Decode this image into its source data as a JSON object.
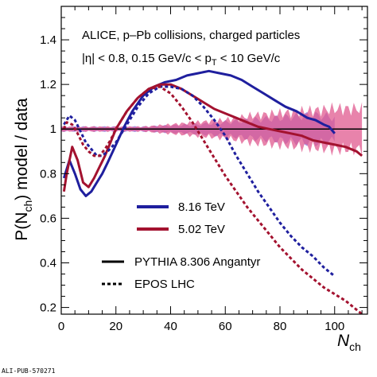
{
  "chart_data": {
    "type": "line",
    "annotation": {
      "line1": "ALICE, p–Pb collisions, charged particles",
      "line2_eta": "|η| < 0.8, 0.15 GeV/c < p",
      "line2_sub": "T",
      "line2_end": " < 10 GeV/c"
    },
    "xlabel": "N",
    "xlabel_sub": "ch",
    "ylabel": "P(N",
    "ylabel_sub": "ch",
    "ylabel_end": ") model / data",
    "xlim": [
      0,
      112
    ],
    "ylim": [
      0.17,
      1.55
    ],
    "x_ticks": [
      0,
      20,
      40,
      60,
      80,
      100
    ],
    "y_ticks": [
      0.2,
      0.4,
      0.6,
      0.8,
      1,
      1.2,
      1.4
    ],
    "y_tick_labels": [
      "0.2",
      "0.4",
      "0.6",
      "0.8",
      "1",
      "1.2",
      "1.4"
    ],
    "reference_line": 1,
    "colors": {
      "blue": "#1f1f9e",
      "red": "#a3122f",
      "band_blue": "#8f6fd9",
      "band_red": "#e05a8f"
    },
    "legend_colors": [
      {
        "label": "8.16 TeV",
        "color": "#1f1f9e"
      },
      {
        "label": "5.02 TeV",
        "color": "#a3122f"
      }
    ],
    "legend_styles": [
      {
        "label": "PYTHIA 8.306 Angantyr",
        "style": "solid"
      },
      {
        "label": "EPOS LHC",
        "style": "dashed"
      }
    ],
    "series": [
      {
        "name": "8.16 TeV PYTHIA 8.306 Angantyr",
        "color": "#1f1f9e",
        "style": "solid",
        "x": [
          1,
          3,
          5,
          7,
          9,
          11,
          13,
          15,
          17,
          20,
          23,
          26,
          30,
          34,
          38,
          42,
          46,
          50,
          54,
          58,
          62,
          66,
          70,
          74,
          78,
          82,
          86,
          90,
          93,
          96,
          98,
          100
        ],
        "y": [
          0.78,
          0.86,
          0.8,
          0.73,
          0.7,
          0.72,
          0.76,
          0.8,
          0.85,
          0.93,
          1.01,
          1.08,
          1.15,
          1.19,
          1.21,
          1.22,
          1.24,
          1.25,
          1.26,
          1.25,
          1.24,
          1.22,
          1.19,
          1.16,
          1.13,
          1.1,
          1.08,
          1.05,
          1.04,
          1.02,
          1.01,
          0.98
        ]
      },
      {
        "name": "5.02 TeV PYTHIA 8.306 Angantyr",
        "color": "#a3122f",
        "style": "solid",
        "x": [
          1,
          2,
          4,
          6,
          8,
          10,
          12,
          14,
          16,
          18,
          20,
          24,
          28,
          32,
          36,
          40,
          44,
          48,
          52,
          56,
          60,
          64,
          68,
          72,
          76,
          80,
          84,
          88,
          92,
          96,
          100,
          104,
          108,
          110
        ],
        "y": [
          0.72,
          0.8,
          0.92,
          0.86,
          0.76,
          0.74,
          0.78,
          0.83,
          0.88,
          0.94,
          1.0,
          1.08,
          1.14,
          1.18,
          1.2,
          1.2,
          1.18,
          1.15,
          1.12,
          1.09,
          1.07,
          1.05,
          1.03,
          1.01,
          1.0,
          0.99,
          0.98,
          0.97,
          0.95,
          0.94,
          0.93,
          0.92,
          0.9,
          0.88
        ]
      },
      {
        "name": "8.16 TeV EPOS LHC",
        "color": "#1f1f9e",
        "style": "dashed",
        "x": [
          1,
          3,
          5,
          7,
          9,
          11,
          13,
          15,
          17,
          20,
          24,
          28,
          32,
          36,
          40,
          44,
          48,
          52,
          56,
          60,
          64,
          68,
          72,
          76,
          80,
          84,
          88,
          92,
          96,
          100
        ],
        "y": [
          1.02,
          1.06,
          1.04,
          0.99,
          0.94,
          0.91,
          0.88,
          0.88,
          0.9,
          0.94,
          1.02,
          1.1,
          1.16,
          1.19,
          1.19,
          1.18,
          1.15,
          1.1,
          1.04,
          0.97,
          0.88,
          0.8,
          0.72,
          0.65,
          0.58,
          0.52,
          0.47,
          0.43,
          0.38,
          0.34
        ]
      },
      {
        "name": "5.02 TeV EPOS LHC",
        "color": "#a3122f",
        "style": "dashed",
        "x": [
          1,
          2,
          4,
          6,
          8,
          10,
          12,
          14,
          16,
          18,
          20,
          24,
          28,
          32,
          36,
          40,
          44,
          48,
          52,
          56,
          60,
          64,
          68,
          72,
          76,
          80,
          84,
          88,
          92,
          96,
          100,
          104,
          108,
          110
        ],
        "y": [
          1.0,
          1.03,
          1.02,
          0.98,
          0.93,
          0.9,
          0.88,
          0.88,
          0.91,
          0.95,
          1.0,
          1.08,
          1.14,
          1.18,
          1.19,
          1.16,
          1.1,
          1.03,
          0.95,
          0.87,
          0.79,
          0.72,
          0.65,
          0.59,
          0.53,
          0.47,
          0.42,
          0.37,
          0.33,
          0.29,
          0.26,
          0.23,
          0.19,
          0.17
        ]
      }
    ],
    "bands": [
      {
        "name": "8.16 TeV uncertainty",
        "color": "#8f6fd9",
        "x": [
          0,
          10,
          20,
          30,
          40,
          50,
          60,
          70,
          80,
          90,
          95,
          100
        ],
        "half_width": [
          0.01,
          0.01,
          0.01,
          0.01,
          0.015,
          0.02,
          0.03,
          0.04,
          0.05,
          0.06,
          0.06,
          0.05
        ]
      },
      {
        "name": "5.02 TeV uncertainty",
        "color": "#e05a8f",
        "x": [
          0,
          10,
          20,
          30,
          40,
          50,
          60,
          70,
          80,
          90,
          100,
          110
        ],
        "half_width": [
          0.01,
          0.01,
          0.01,
          0.01,
          0.02,
          0.03,
          0.04,
          0.06,
          0.07,
          0.08,
          0.09,
          0.09
        ]
      }
    ]
  },
  "footer": "ALI-PUB-570271"
}
